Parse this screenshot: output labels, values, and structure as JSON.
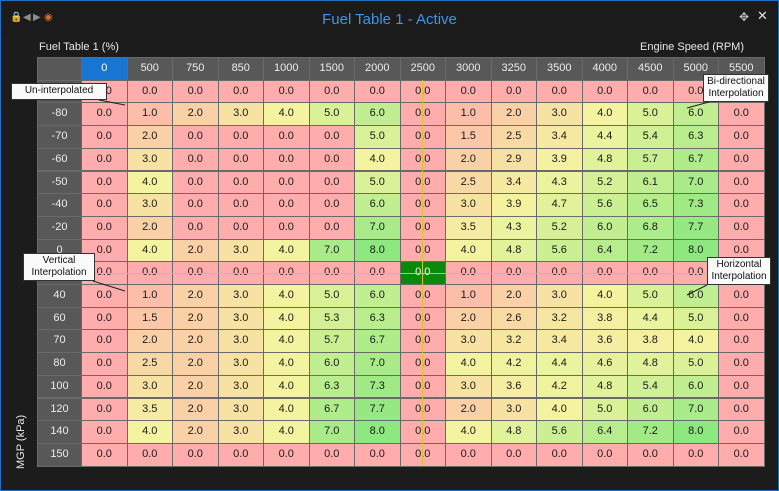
{
  "window": {
    "title": "Fuel Table 1 - Active",
    "pin_icon": "pin-icon",
    "move_icon": "move-icon",
    "close_icon": "close-icon"
  },
  "table": {
    "title": "Fuel Table 1 (%)",
    "x_axis_label": "Engine Speed (RPM)",
    "y_axis_label": "MGP (kPa)",
    "columns": [
      "0",
      "500",
      "750",
      "850",
      "1000",
      "1500",
      "2000",
      "2500",
      "3000",
      "3250",
      "3500",
      "4000",
      "4500",
      "5000",
      "5500"
    ],
    "rows": [
      {
        "label": "",
        "values": [
          "0.0",
          "0.0",
          "0.0",
          "0.0",
          "0.0",
          "0.0",
          "0.0",
          "0.0",
          "0.0",
          "0.0",
          "0.0",
          "0.0",
          "0.0",
          "0.0",
          "0.0"
        ]
      },
      {
        "label": "-80",
        "values": [
          "0.0",
          "1.0",
          "2.0",
          "3.0",
          "4.0",
          "5.0",
          "6.0",
          "0.0",
          "1.0",
          "2.0",
          "3.0",
          "4.0",
          "5.0",
          "6.0",
          "0.0"
        ]
      },
      {
        "label": "-70",
        "values": [
          "0.0",
          "2.0",
          "0.0",
          "0.0",
          "0.0",
          "0.0",
          "5.0",
          "0.0",
          "1.5",
          "2.5",
          "3.4",
          "4.4",
          "5.4",
          "6.3",
          "0.0"
        ]
      },
      {
        "label": "-60",
        "values": [
          "0.0",
          "3.0",
          "0.0",
          "0.0",
          "0.0",
          "0.0",
          "4.0",
          "0.0",
          "2.0",
          "2.9",
          "3.9",
          "4.8",
          "5.7",
          "6.7",
          "0.0"
        ]
      },
      {
        "label": "-50",
        "values": [
          "0.0",
          "4.0",
          "0.0",
          "0.0",
          "0.0",
          "0.0",
          "5.0",
          "0.0",
          "2.5",
          "3.4",
          "4.3",
          "5.2",
          "6.1",
          "7.0",
          "0.0"
        ]
      },
      {
        "label": "-40",
        "values": [
          "0.0",
          "3.0",
          "0.0",
          "0.0",
          "0.0",
          "0.0",
          "6.0",
          "0.0",
          "3.0",
          "3.9",
          "4.7",
          "5.6",
          "6.5",
          "7.3",
          "0.0"
        ]
      },
      {
        "label": "-20",
        "values": [
          "0.0",
          "2.0",
          "0.0",
          "0.0",
          "0.0",
          "0.0",
          "7.0",
          "0.0",
          "3.5",
          "4.3",
          "5.2",
          "6.0",
          "6.8",
          "7.7",
          "0.0"
        ]
      },
      {
        "label": "0",
        "values": [
          "0.0",
          "4.0",
          "2.0",
          "3.0",
          "4.0",
          "7.0",
          "8.0",
          "0.0",
          "4.0",
          "4.8",
          "5.6",
          "6.4",
          "7.2",
          "8.0",
          "0.0"
        ]
      },
      {
        "label": "",
        "values": [
          "0.0",
          "0.0",
          "0.0",
          "0.0",
          "0.0",
          "0.0",
          "0.0",
          "0.0",
          "0.0",
          "0.0",
          "0.0",
          "0.0",
          "0.0",
          "0.0",
          "0.0"
        ]
      },
      {
        "label": "40",
        "values": [
          "0.0",
          "1.0",
          "2.0",
          "3.0",
          "4.0",
          "5.0",
          "6.0",
          "0.0",
          "1.0",
          "2.0",
          "3.0",
          "4.0",
          "5.0",
          "6.0",
          "0.0"
        ]
      },
      {
        "label": "60",
        "values": [
          "0.0",
          "1.5",
          "2.0",
          "3.0",
          "4.0",
          "5.3",
          "6.3",
          "0.0",
          "2.0",
          "2.6",
          "3.2",
          "3.8",
          "4.4",
          "5.0",
          "0.0"
        ]
      },
      {
        "label": "70",
        "values": [
          "0.0",
          "2.0",
          "2.0",
          "3.0",
          "4.0",
          "5.7",
          "6.7",
          "0.0",
          "3.0",
          "3.2",
          "3.4",
          "3.6",
          "3.8",
          "4.0",
          "0.0"
        ]
      },
      {
        "label": "80",
        "values": [
          "0.0",
          "2.5",
          "2.0",
          "3.0",
          "4.0",
          "6.0",
          "7.0",
          "0.0",
          "4.0",
          "4.2",
          "4.4",
          "4.6",
          "4.8",
          "5.0",
          "0.0"
        ]
      },
      {
        "label": "100",
        "values": [
          "0.0",
          "3.0",
          "2.0",
          "3.0",
          "4.0",
          "6.3",
          "7.3",
          "0.0",
          "3.0",
          "3.6",
          "4.2",
          "4.8",
          "5.4",
          "6.0",
          "0.0"
        ]
      },
      {
        "label": "120",
        "values": [
          "0.0",
          "3.5",
          "2.0",
          "3.0",
          "4.0",
          "6.7",
          "7.7",
          "0.0",
          "2.0",
          "3.0",
          "4.0",
          "5.0",
          "6.0",
          "7.0",
          "0.0"
        ]
      },
      {
        "label": "140",
        "values": [
          "0.0",
          "4.0",
          "2.0",
          "3.0",
          "4.0",
          "7.0",
          "8.0",
          "0.0",
          "4.0",
          "4.8",
          "5.6",
          "6.4",
          "7.2",
          "8.0",
          "0.0"
        ]
      },
      {
        "label": "150",
        "values": [
          "0.0",
          "0.0",
          "0.0",
          "0.0",
          "0.0",
          "0.0",
          "0.0",
          "0.0",
          "0.0",
          "0.0",
          "0.0",
          "0.0",
          "0.0",
          "0.0",
          "0.0"
        ]
      }
    ],
    "selected_column": 0,
    "active_cell": {
      "row": 8,
      "col": 7
    },
    "colors": {
      "zero": "#ffacac",
      "mid": "#f4f4a0",
      "high": "#8ee880",
      "active": "#0a8a0a",
      "selected_header": "#1875d2",
      "crosshair": "#d4c629"
    }
  },
  "annotations": [
    {
      "id": "uninterpolated",
      "text": "Un-interpolated"
    },
    {
      "id": "bidirectional",
      "text": "Bi-directional\nInterpolation"
    },
    {
      "id": "vertical",
      "text": "Vertical\nInterpolation"
    },
    {
      "id": "horizontal",
      "text": "Horizontal\nInterpolation"
    }
  ]
}
